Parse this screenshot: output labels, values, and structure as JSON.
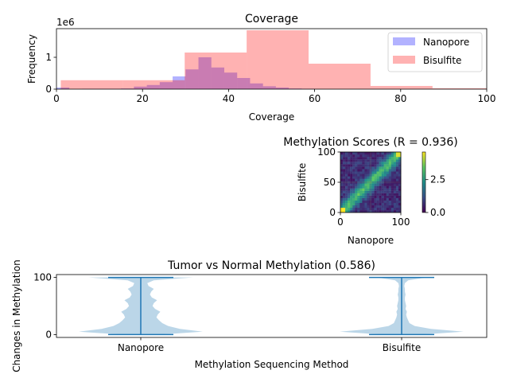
{
  "chart_data": [
    {
      "type": "histogram",
      "title": "Coverage",
      "xlabel": "Coverage",
      "ylabel": "Frequency",
      "offset_label": "1e6",
      "xlim": [
        0,
        100
      ],
      "ylim": [
        0,
        1.9
      ],
      "xticks": [
        0,
        20,
        40,
        60,
        80,
        100
      ],
      "yticks": [
        0,
        1
      ],
      "legend_position": "upper-right",
      "series": [
        {
          "name": "Nanopore",
          "color": "#0000ff",
          "alpha": 0.3,
          "bins": [
            {
              "x0": 0,
              "x1": 3,
              "y": 0.05
            },
            {
              "x0": 3,
              "x1": 6,
              "y": 0.0
            },
            {
              "x0": 6,
              "x1": 9,
              "y": 0.01
            },
            {
              "x0": 9,
              "x1": 12,
              "y": 0.01
            },
            {
              "x0": 12,
              "x1": 15,
              "y": 0.01
            },
            {
              "x0": 15,
              "x1": 18,
              "y": 0.02
            },
            {
              "x0": 18,
              "x1": 21,
              "y": 0.08
            },
            {
              "x0": 21,
              "x1": 24,
              "y": 0.13
            },
            {
              "x0": 24,
              "x1": 27,
              "y": 0.22
            },
            {
              "x0": 27,
              "x1": 30,
              "y": 0.4
            },
            {
              "x0": 30,
              "x1": 33,
              "y": 0.62
            },
            {
              "x0": 33,
              "x1": 36,
              "y": 1.0
            },
            {
              "x0": 36,
              "x1": 39,
              "y": 0.68
            },
            {
              "x0": 39,
              "x1": 42,
              "y": 0.52
            },
            {
              "x0": 42,
              "x1": 45,
              "y": 0.35
            },
            {
              "x0": 45,
              "x1": 48,
              "y": 0.18
            },
            {
              "x0": 48,
              "x1": 51,
              "y": 0.09
            },
            {
              "x0": 51,
              "x1": 54,
              "y": 0.05
            },
            {
              "x0": 54,
              "x1": 57,
              "y": 0.02
            },
            {
              "x0": 57,
              "x1": 60,
              "y": 0.01
            }
          ]
        },
        {
          "name": "Bisulfite",
          "color": "#ff0000",
          "alpha": 0.3,
          "bins": [
            {
              "x0": 1,
              "x1": 15.4,
              "y": 0.28
            },
            {
              "x0": 15.4,
              "x1": 29.8,
              "y": 0.28
            },
            {
              "x0": 29.8,
              "x1": 44.2,
              "y": 1.15
            },
            {
              "x0": 44.2,
              "x1": 58.6,
              "y": 1.85
            },
            {
              "x0": 58.6,
              "x1": 73,
              "y": 0.8
            },
            {
              "x0": 73,
              "x1": 87.4,
              "y": 0.1
            },
            {
              "x0": 87.4,
              "x1": 101.8,
              "y": 0.03
            }
          ]
        }
      ]
    },
    {
      "type": "heatmap",
      "title": "Methylation Scores (R = 0.936)",
      "xlabel": "Nanopore",
      "ylabel": "Bisulfite",
      "xlim": [
        0,
        100
      ],
      "ylim": [
        0,
        100
      ],
      "xticks": [
        0,
        100
      ],
      "yticks": [
        0,
        50,
        100
      ],
      "grid": true,
      "colormap": "viridis",
      "colorbar": {
        "min": 0,
        "max": 4.6,
        "ticks": [
          0.0,
          2.5
        ],
        "tick_labels": [
          "0.0",
          "2.5"
        ]
      },
      "colormap_stops": [
        "#440154",
        "#3b528b",
        "#21918c",
        "#5ec962",
        "#fde725"
      ]
    },
    {
      "type": "violin",
      "title": "Tumor vs Normal Methylation (0.586)",
      "xlabel": "Methylation Sequencing Method",
      "ylabel": "Changes in Methylation",
      "categories": [
        "Nanopore",
        "Bisulfite"
      ],
      "ylim": [
        -5,
        105
      ],
      "yticks": [
        0,
        100
      ],
      "color": "#1f77b4",
      "body_color": "#1f77b4",
      "body_alpha": 0.3,
      "violins": [
        {
          "name": "Nanopore",
          "min": 0,
          "max": 100,
          "profile": [
            [
              0,
              0.3
            ],
            [
              5,
              0.95
            ],
            [
              10,
              0.6
            ],
            [
              15,
              0.42
            ],
            [
              20,
              0.33
            ],
            [
              25,
              0.28
            ],
            [
              30,
              0.24
            ],
            [
              35,
              0.26
            ],
            [
              40,
              0.3
            ],
            [
              45,
              0.22
            ],
            [
              50,
              0.18
            ],
            [
              55,
              0.2
            ],
            [
              60,
              0.25
            ],
            [
              65,
              0.17
            ],
            [
              70,
              0.14
            ],
            [
              75,
              0.16
            ],
            [
              80,
              0.2
            ],
            [
              85,
              0.12
            ],
            [
              90,
              0.1
            ],
            [
              95,
              0.2
            ],
            [
              100,
              0.8
            ]
          ]
        },
        {
          "name": "Bisulfite",
          "min": 0,
          "max": 100,
          "profile": [
            [
              0,
              0.3
            ],
            [
              5,
              0.95
            ],
            [
              10,
              0.45
            ],
            [
              15,
              0.2
            ],
            [
              20,
              0.12
            ],
            [
              25,
              0.1
            ],
            [
              30,
              0.08
            ],
            [
              35,
              0.07
            ],
            [
              40,
              0.08
            ],
            [
              45,
              0.06
            ],
            [
              50,
              0.07
            ],
            [
              55,
              0.06
            ],
            [
              60,
              0.05
            ],
            [
              65,
              0.05
            ],
            [
              70,
              0.06
            ],
            [
              75,
              0.05
            ],
            [
              80,
              0.05
            ],
            [
              85,
              0.04
            ],
            [
              90,
              0.05
            ],
            [
              95,
              0.1
            ],
            [
              100,
              0.38
            ]
          ]
        }
      ]
    }
  ]
}
